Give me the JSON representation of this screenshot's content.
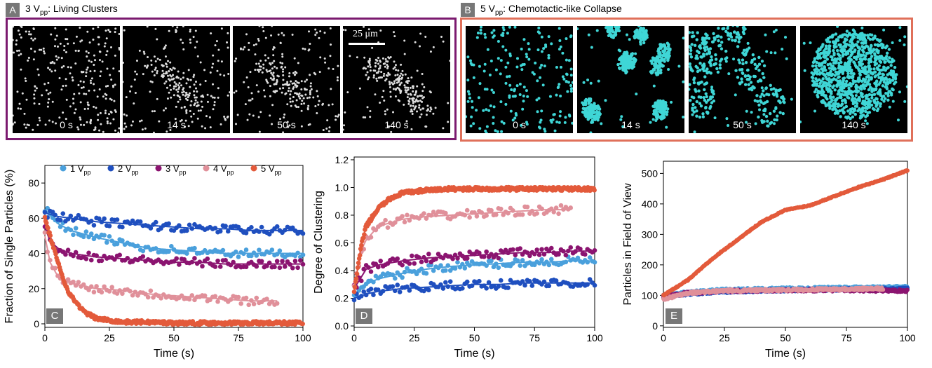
{
  "panels": {
    "a": {
      "letter": "A",
      "voltage": "3 V",
      "sub": "pp",
      "title": ": Living Clusters",
      "frame_color": "#7b1a6f",
      "particle_color": "#dddddd",
      "times": [
        "0 s",
        "14 s",
        "50 s",
        "140 s"
      ],
      "scale_label": "25 μm"
    },
    "b": {
      "letter": "B",
      "voltage": "5 V",
      "sub": "pp",
      "title": ": Chemotactic-like Collapse",
      "frame_color": "#e0705a",
      "particle_color": "#3fd6d6",
      "times": [
        "0 s",
        "14 s",
        "50 s",
        "140 s"
      ]
    }
  },
  "legend_items": [
    {
      "label": "1 V",
      "sub": "pp",
      "color": "#4aa0dc"
    },
    {
      "label": "2 V",
      "sub": "pp",
      "color": "#1f4fbf"
    },
    {
      "label": "3 V",
      "sub": "pp",
      "color": "#8b1470"
    },
    {
      "label": "4 V",
      "sub": "pp",
      "color": "#e0909a"
    },
    {
      "label": "5 V",
      "sub": "pp",
      "color": "#e35a3b"
    }
  ],
  "chart_data": [
    {
      "panel": "C",
      "type": "scatter",
      "xlabel": "Time (s)",
      "ylabel": "Fraction of Single Particles (%)",
      "xlim": [
        0,
        100
      ],
      "ylim": [
        -2,
        90
      ],
      "xticks": [
        0,
        25,
        50,
        75,
        100
      ],
      "yticks": [
        0,
        20,
        40,
        60,
        80
      ],
      "legend": "top",
      "series": [
        {
          "name": "1 Vpp",
          "color": "#4aa0dc",
          "x": [
            0,
            5,
            10,
            20,
            30,
            40,
            50,
            60,
            70,
            80,
            90,
            100
          ],
          "y": [
            65,
            57,
            53,
            49,
            46,
            43,
            42,
            41,
            40,
            40,
            40,
            40
          ]
        },
        {
          "name": "2 Vpp",
          "color": "#1f4fbf",
          "x": [
            0,
            5,
            10,
            20,
            30,
            40,
            50,
            60,
            70,
            80,
            90,
            100
          ],
          "y": [
            63,
            61,
            60,
            58,
            57,
            56,
            55,
            54,
            54,
            53,
            53,
            53
          ]
        },
        {
          "name": "3 Vpp",
          "color": "#8b1470",
          "x": [
            0,
            2,
            5,
            10,
            20,
            30,
            40,
            50,
            60,
            70,
            80,
            90,
            100
          ],
          "y": [
            55,
            47,
            43,
            40,
            38,
            37,
            36,
            35,
            35,
            34,
            34,
            34,
            34
          ]
        },
        {
          "name": "4 Vpp",
          "color": "#e0909a",
          "x": [
            0,
            2,
            5,
            10,
            20,
            30,
            40,
            50,
            60,
            70,
            80,
            90
          ],
          "y": [
            50,
            35,
            27,
            23,
            20,
            19,
            17,
            16,
            15,
            14,
            13,
            13
          ]
        },
        {
          "name": "5 Vpp",
          "color": "#e35a3b",
          "x": [
            0,
            2,
            5,
            8,
            10,
            15,
            20,
            25,
            30,
            40,
            50,
            60,
            70,
            80,
            90,
            100
          ],
          "y": [
            60,
            50,
            35,
            22,
            16,
            7,
            3,
            2,
            1,
            1,
            0.5,
            0.5,
            0.5,
            0.5,
            0.5,
            0.5
          ]
        }
      ]
    },
    {
      "panel": "D",
      "type": "scatter",
      "xlabel": "Time (s)",
      "ylabel": "Degree of Clustering",
      "xlim": [
        0,
        100
      ],
      "ylim": [
        -0.01,
        1.22
      ],
      "xticks": [
        0,
        25,
        50,
        75,
        100
      ],
      "yticks": [
        0.0,
        0.2,
        0.4,
        0.6,
        0.8,
        1.0,
        1.2
      ],
      "series": [
        {
          "name": "1 Vpp",
          "color": "#4aa0dc",
          "x": [
            0,
            5,
            10,
            20,
            30,
            40,
            50,
            60,
            70,
            80,
            90,
            100
          ],
          "y": [
            0.22,
            0.3,
            0.34,
            0.38,
            0.41,
            0.43,
            0.44,
            0.45,
            0.46,
            0.46,
            0.47,
            0.47
          ]
        },
        {
          "name": "2 Vpp",
          "color": "#1f4fbf",
          "x": [
            0,
            5,
            10,
            20,
            30,
            40,
            50,
            60,
            70,
            80,
            90,
            100
          ],
          "y": [
            0.2,
            0.23,
            0.25,
            0.27,
            0.28,
            0.29,
            0.3,
            0.3,
            0.31,
            0.31,
            0.31,
            0.31
          ]
        },
        {
          "name": "3 Vpp",
          "color": "#8b1470",
          "x": [
            0,
            5,
            10,
            20,
            30,
            40,
            50,
            60,
            70,
            80,
            90,
            100
          ],
          "y": [
            0.27,
            0.41,
            0.44,
            0.47,
            0.49,
            0.5,
            0.51,
            0.52,
            0.53,
            0.53,
            0.54,
            0.54
          ]
        },
        {
          "name": "4 Vpp",
          "color": "#e0909a",
          "x": [
            0,
            3,
            5,
            10,
            20,
            30,
            40,
            50,
            60,
            70,
            80,
            90
          ],
          "y": [
            0.28,
            0.55,
            0.62,
            0.72,
            0.77,
            0.79,
            0.8,
            0.81,
            0.82,
            0.83,
            0.84,
            0.84
          ]
        },
        {
          "name": "5 Vpp",
          "color": "#e35a3b",
          "x": [
            0,
            3,
            5,
            10,
            15,
            20,
            25,
            30,
            40,
            50,
            60,
            70,
            80,
            90,
            100
          ],
          "y": [
            0.25,
            0.58,
            0.72,
            0.85,
            0.92,
            0.96,
            0.97,
            0.98,
            0.99,
            0.99,
            0.99,
            0.99,
            0.99,
            0.99,
            0.99
          ]
        }
      ]
    },
    {
      "panel": "E",
      "type": "scatter",
      "xlabel": "Time (s)",
      "ylabel": "Particles in Field of View",
      "xlim": [
        0,
        100
      ],
      "ylim": [
        -5,
        540
      ],
      "xticks": [
        0,
        25,
        50,
        75,
        100
      ],
      "yticks": [
        0,
        100,
        200,
        300,
        400,
        500
      ],
      "series": [
        {
          "name": "1 Vpp",
          "color": "#4aa0dc",
          "x": [
            0,
            10,
            25,
            50,
            75,
            100
          ],
          "y": [
            100,
            110,
            118,
            122,
            125,
            127
          ]
        },
        {
          "name": "2 Vpp",
          "color": "#1f4fbf",
          "x": [
            0,
            10,
            25,
            50,
            75,
            100
          ],
          "y": [
            95,
            105,
            112,
            117,
            120,
            122
          ]
        },
        {
          "name": "3 Vpp",
          "color": "#8b1470",
          "x": [
            0,
            10,
            25,
            50,
            75,
            100
          ],
          "y": [
            95,
            108,
            114,
            117,
            117,
            115
          ]
        },
        {
          "name": "4 Vpp",
          "color": "#e0909a",
          "x": [
            0,
            10,
            25,
            50,
            75,
            90
          ],
          "y": [
            88,
            108,
            115,
            118,
            120,
            122
          ]
        },
        {
          "name": "5 Vpp",
          "color": "#e35a3b",
          "x": [
            0,
            3,
            5,
            10,
            15,
            20,
            30,
            40,
            50,
            60,
            70,
            80,
            90,
            100
          ],
          "y": [
            100,
            115,
            125,
            150,
            185,
            220,
            280,
            340,
            380,
            395,
            425,
            455,
            480,
            510
          ]
        }
      ]
    }
  ]
}
